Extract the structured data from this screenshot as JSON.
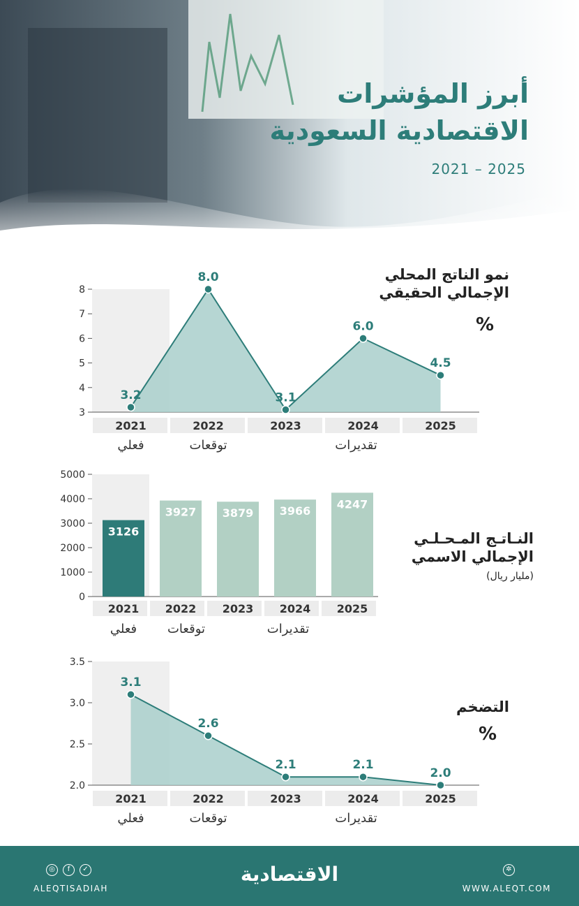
{
  "header": {
    "title_line1": "أبرز المؤشرات",
    "title_line2": "الاقتصادية السعودية",
    "years": "2021 – 2025"
  },
  "colors": {
    "accent": "#2d7d79",
    "area_fill": "#a9cfcb",
    "bar_actual": "#2e7b78",
    "bar_forecast": "#b2d0c4",
    "shade": "#efefef",
    "footer": "#2a7672"
  },
  "labels": {
    "gdp_growth": {
      "line1": "نمو الناتج المحلي",
      "line2": "الإجمالي الحقيقي",
      "unit": "%"
    },
    "gdp_nominal": {
      "line1": "النـاتـج المـحـلـي",
      "line2": "الإجمالي الاسمي",
      "unit": "(مليار ريال)"
    },
    "inflation": {
      "line1": "التضخم",
      "unit": "%"
    }
  },
  "chart_data": [
    {
      "type": "area",
      "title": "نمو الناتج المحلي الإجمالي الحقيقي",
      "categories": [
        "2021",
        "2022",
        "2023",
        "2024",
        "2025"
      ],
      "values": [
        3.2,
        8.0,
        3.1,
        6.0,
        4.5
      ],
      "value_labels": [
        "3.2",
        "8.0",
        "3.1",
        "6.0",
        "4.5"
      ],
      "ylim": [
        3,
        8
      ],
      "yticks": [
        "3",
        "4",
        "5",
        "6",
        "7",
        "8"
      ],
      "groups": [
        "فعلي",
        "توقعات",
        "تقديرات"
      ]
    },
    {
      "type": "bar",
      "title": "الناتج المحلي الإجمالي الاسمي",
      "categories": [
        "2021",
        "2022",
        "2023",
        "2024",
        "2025"
      ],
      "values": [
        3126,
        3927,
        3879,
        3966,
        4247
      ],
      "value_labels": [
        "3126",
        "3927",
        "3879",
        "3966",
        "4247"
      ],
      "ylim": [
        0,
        5000
      ],
      "yticks": [
        "0",
        "1000",
        "2000",
        "3000",
        "4000",
        "5000"
      ],
      "groups": [
        "فعلي",
        "توقعات",
        "تقديرات"
      ]
    },
    {
      "type": "area",
      "title": "التضخم",
      "categories": [
        "2021",
        "2022",
        "2023",
        "2024",
        "2025"
      ],
      "values": [
        3.1,
        2.6,
        2.1,
        2.1,
        2.0
      ],
      "value_labels": [
        "3.1",
        "2.6",
        "2.1",
        "2.1",
        "2.0"
      ],
      "ylim": [
        2.0,
        3.5
      ],
      "yticks": [
        "2.0",
        "2.5",
        "3.0",
        "3.5"
      ],
      "groups": [
        "فعلي",
        "توقعات",
        "تقديرات"
      ]
    }
  ],
  "footer": {
    "handle": "ALEQTISADIAH",
    "logo": "الاقتصادية",
    "site": "WWW.ALEQT.COM",
    "icons": [
      "instagram-icon",
      "facebook-icon",
      "twitter-icon",
      "web-icon"
    ]
  }
}
